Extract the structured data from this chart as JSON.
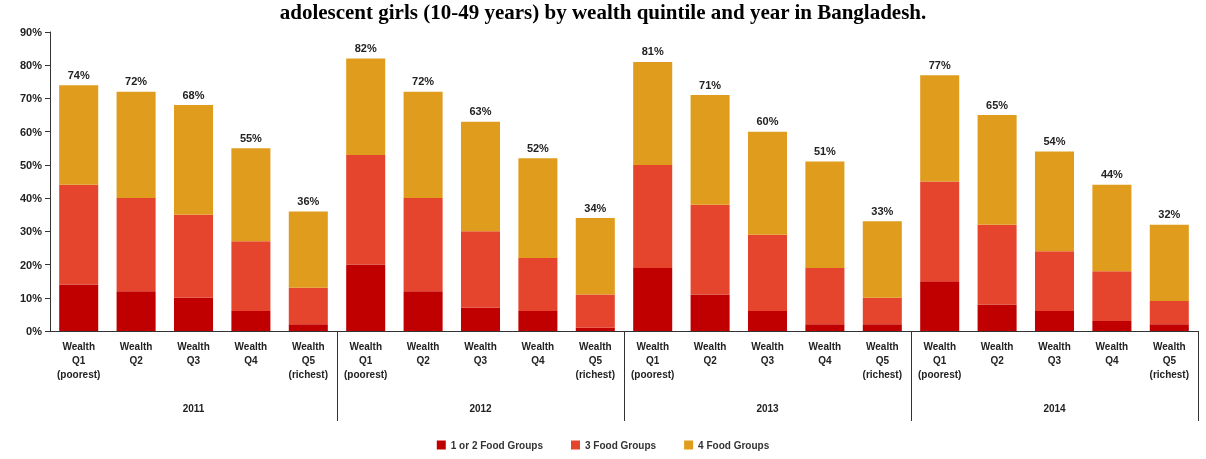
{
  "chart_data": {
    "type": "bar",
    "stacked": true,
    "title": "adolescent girls (10-49 years) by wealth quintile and year in Bangladesh.",
    "categories": [
      "Wealth Q1 (poorest)",
      "Wealth Q2",
      "Wealth Q3",
      "Wealth Q4",
      "Wealth Q5 (richest)",
      "Wealth Q1 (poorest)",
      "Wealth Q2",
      "Wealth Q3",
      "Wealth Q4",
      "Wealth Q5 (richest)",
      "Wealth Q1 (poorest)",
      "Wealth Q2",
      "Wealth Q3",
      "Wealth Q4",
      "Wealth Q5 (richest)",
      "Wealth Q1 (poorest)",
      "Wealth Q2",
      "Wealth Q3",
      "Wealth Q4",
      "Wealth Q5 (richest)"
    ],
    "series": [
      {
        "name": "1 or 2 Food Groups",
        "color": "#c00000",
        "values": [
          14,
          12,
          10,
          6,
          2,
          20,
          12,
          7,
          6,
          1,
          19,
          11,
          6,
          2,
          2,
          15,
          8,
          6,
          3,
          2
        ]
      },
      {
        "name": "3 Food Groups",
        "color": "#e5452d",
        "values": [
          30,
          28,
          25,
          21,
          11,
          33,
          28,
          23,
          16,
          10,
          31,
          27,
          23,
          17,
          8,
          30,
          24,
          18,
          15,
          7
        ]
      },
      {
        "name": "4 Food Groups",
        "color": "#e09c1d",
        "values": [
          30,
          32,
          33,
          28,
          23,
          29,
          32,
          33,
          30,
          23,
          31,
          33,
          31,
          32,
          23,
          32,
          33,
          30,
          26,
          23
        ]
      }
    ],
    "totals": [
      "74%",
      "72%",
      "68%",
      "55%",
      "36%",
      "82%",
      "72%",
      "63%",
      "52%",
      "34%",
      "81%",
      "71%",
      "60%",
      "51%",
      "33%",
      "77%",
      "65%",
      "54%",
      "44%",
      "32%"
    ],
    "annotations": [
      "2011",
      "2012",
      "2013",
      "2014"
    ],
    "ylim": [
      0,
      90
    ],
    "yticks": [
      {
        "value": 0,
        "label": "0%"
      },
      {
        "value": 10,
        "label": "10%"
      },
      {
        "value": 20,
        "label": "20%"
      },
      {
        "value": 30,
        "label": "30%"
      },
      {
        "value": 40,
        "label": "40%"
      },
      {
        "value": 50,
        "label": "50%"
      },
      {
        "value": 60,
        "label": "60%"
      },
      {
        "value": 70,
        "label": "70%"
      },
      {
        "value": 80,
        "label": "80%"
      },
      {
        "value": 90,
        "label": "90%"
      }
    ],
    "grid": false,
    "legend": "bottom"
  }
}
